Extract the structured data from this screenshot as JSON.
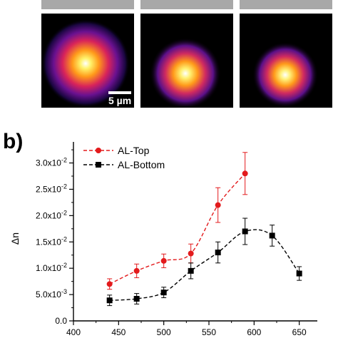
{
  "panel_a": {
    "scale_bar_label": "5 µm",
    "images": [
      {
        "name": "spot-1",
        "spot_color": "#ffee66"
      },
      {
        "name": "spot-2",
        "spot_color": "#ffef70"
      },
      {
        "name": "spot-3",
        "spot_color": "#fff080"
      }
    ]
  },
  "panel_b": {
    "label": "b)"
  },
  "chart_data": {
    "type": "line",
    "xlabel": "",
    "ylabel": "Δn",
    "xlim": [
      400,
      670
    ],
    "ylim": [
      0,
      0.034
    ],
    "x_ticks": [
      "400",
      "450",
      "500",
      "550",
      "600",
      "650"
    ],
    "x_tick_values": [
      400,
      450,
      500,
      550,
      600,
      650
    ],
    "y_ticks": [
      "0.0",
      "5.0x10-3",
      "1.0x10-2",
      "1.5x10-2",
      "2.0x10-2",
      "2.5x10-2",
      "3.0x10-2"
    ],
    "y_tick_values": [
      0,
      0.005,
      0.01,
      0.015,
      0.02,
      0.025,
      0.03
    ],
    "legend_position": "top-left",
    "series": [
      {
        "name": "AL-Top",
        "color": "#e31a1c",
        "marker": "circle",
        "x": [
          440,
          470,
          500,
          530,
          560,
          590
        ],
        "y": [
          0.007,
          0.0095,
          0.0114,
          0.0128,
          0.022,
          0.028
        ],
        "err": [
          0.001,
          0.0013,
          0.0013,
          0.0018,
          0.0033,
          0.004
        ]
      },
      {
        "name": "AL-Bottom",
        "color": "#000000",
        "marker": "square",
        "x": [
          440,
          470,
          500,
          530,
          560,
          590,
          620,
          650
        ],
        "y": [
          0.0039,
          0.0042,
          0.0054,
          0.0095,
          0.013,
          0.017,
          0.0162,
          0.009
        ],
        "err": [
          0.001,
          0.001,
          0.001,
          0.0015,
          0.002,
          0.0025,
          0.002,
          0.0013
        ]
      }
    ]
  }
}
